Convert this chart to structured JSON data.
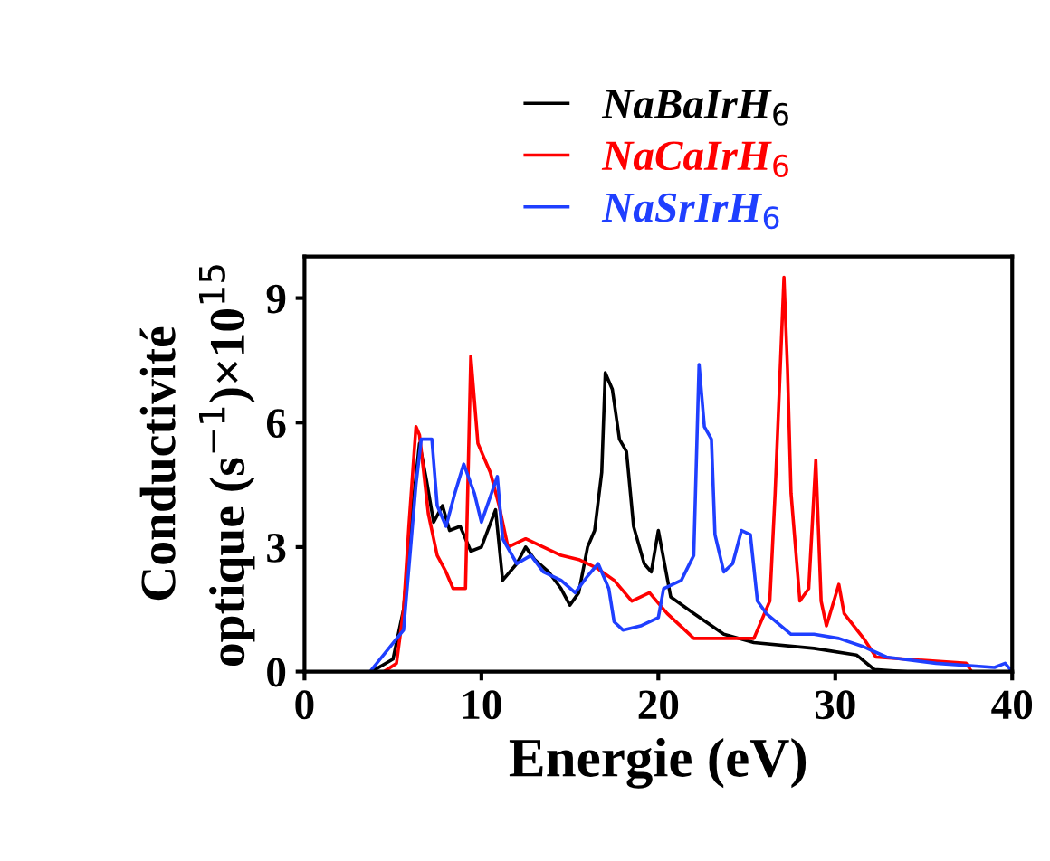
{
  "chart_data": {
    "type": "line",
    "xlabel": "Energie (eV)",
    "ylabel": "Conductivité\noptique (s$^{−1}$)×10$^{15}$",
    "xlim": [
      0,
      40
    ],
    "ylim": [
      0,
      10
    ],
    "xticks": [
      0,
      10,
      20,
      30,
      40
    ],
    "yticks": [
      0,
      3,
      6,
      9
    ],
    "grid": false,
    "legend": "top",
    "marker": "none",
    "line_style": "solid",
    "series": [
      {
        "name": "NaBaIrH$_{6}$",
        "color": "#000000",
        "x": [
          3.8,
          5.0,
          5.6,
          6.0,
          6.5,
          6.9,
          7.3,
          7.8,
          8.2,
          8.8,
          9.4,
          10.0,
          10.8,
          11.2,
          12.0,
          12.5,
          13.0,
          13.8,
          14.5,
          15.0,
          15.5,
          16.0,
          16.4,
          16.8,
          17.0,
          17.4,
          17.8,
          18.2,
          18.6,
          19.2,
          19.6,
          20.0,
          20.7,
          22.0,
          23.7,
          25.4,
          28.8,
          31.2,
          32.2,
          34.0
        ],
        "values": [
          0,
          0.3,
          1.5,
          3.5,
          5.5,
          4.6,
          3.6,
          4.0,
          3.4,
          3.5,
          2.9,
          3.0,
          3.9,
          2.2,
          2.6,
          3.0,
          2.7,
          2.4,
          2.0,
          1.6,
          1.9,
          3.0,
          3.4,
          4.8,
          7.2,
          6.8,
          5.6,
          5.3,
          3.5,
          2.6,
          2.4,
          3.4,
          1.8,
          1.4,
          0.9,
          0.7,
          0.56,
          0.4,
          0.05,
          0
        ]
      },
      {
        "name": "NaCaIrH$_{6}$",
        "color": "#ff0000",
        "x": [
          4.5,
          5.2,
          5.6,
          5.9,
          6.3,
          6.5,
          7.0,
          7.5,
          8.0,
          8.4,
          9.1,
          9.4,
          9.8,
          10.5,
          11.0,
          11.5,
          12.5,
          13.5,
          14.5,
          15.5,
          16.5,
          17.5,
          18.5,
          19.5,
          20.5,
          22.0,
          25.4,
          26.3,
          26.6,
          27.1,
          27.3,
          27.5,
          28.0,
          28.5,
          28.9,
          29.2,
          29.5,
          30.2,
          30.5,
          31.6,
          32.3,
          37.4,
          37.7
        ],
        "values": [
          0,
          0.2,
          1.5,
          3.5,
          5.9,
          5.7,
          3.8,
          2.8,
          2.4,
          2.0,
          2.0,
          7.6,
          5.5,
          4.8,
          4.0,
          3.0,
          3.2,
          3.0,
          2.8,
          2.7,
          2.5,
          2.2,
          1.7,
          1.9,
          1.4,
          0.8,
          0.8,
          1.7,
          4.3,
          9.5,
          7.3,
          4.3,
          1.7,
          2.0,
          5.1,
          1.7,
          1.1,
          2.1,
          1.4,
          0.8,
          0.35,
          0.2,
          0
        ]
      },
      {
        "name": "NaSrIrH$_{6}$",
        "color": "#1f3fff",
        "x": [
          3.8,
          5.6,
          6.0,
          6.3,
          6.6,
          7.2,
          7.5,
          8.0,
          8.5,
          9.0,
          9.6,
          10.0,
          10.9,
          11.2,
          12.0,
          12.8,
          13.5,
          14.5,
          15.3,
          16.0,
          16.6,
          17.2,
          17.5,
          18.0,
          19.0,
          20.0,
          20.3,
          21.3,
          22.0,
          22.3,
          22.6,
          23.0,
          23.2,
          23.7,
          24.2,
          24.7,
          25.2,
          25.6,
          26.1,
          27.5,
          28.8,
          30.2,
          31.6,
          32.9,
          35.7,
          39.0,
          39.6,
          40.0
        ],
        "values": [
          0.05,
          1.0,
          3.0,
          4.5,
          5.6,
          5.6,
          4.0,
          3.5,
          4.3,
          5.0,
          4.3,
          3.6,
          4.7,
          3.2,
          2.6,
          2.8,
          2.4,
          2.2,
          1.9,
          2.3,
          2.6,
          2.0,
          1.2,
          1.0,
          1.1,
          1.3,
          2.0,
          2.2,
          2.8,
          7.4,
          5.9,
          5.6,
          3.3,
          2.4,
          2.6,
          3.4,
          3.3,
          1.7,
          1.4,
          0.9,
          0.9,
          0.8,
          0.6,
          0.35,
          0.2,
          0.1,
          0.2,
          0
        ]
      }
    ]
  }
}
